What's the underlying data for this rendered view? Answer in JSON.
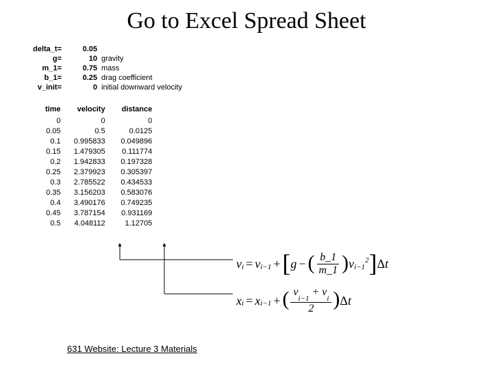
{
  "title": "Go to Excel Spread Sheet",
  "params": [
    {
      "label": "delta_t=",
      "value": "0.05",
      "desc": ""
    },
    {
      "label": "g=",
      "value": "10",
      "desc": "gravity"
    },
    {
      "label": "m_1=",
      "value": "0.75",
      "desc": "mass"
    },
    {
      "label": "b_1=",
      "value": "0.25",
      "desc": "drag coefficient"
    },
    {
      "label": "v_init=",
      "value": "0",
      "desc": "initial downward velocity"
    }
  ],
  "columns": {
    "time": "time",
    "velocity": "velocity",
    "distance": "distance"
  },
  "rows": [
    {
      "time": "0",
      "velocity": "0",
      "distance": "0"
    },
    {
      "time": "0.05",
      "velocity": "0.5",
      "distance": "0.0125"
    },
    {
      "time": "0.1",
      "velocity": "0.995833",
      "distance": "0.049896"
    },
    {
      "time": "0.15",
      "velocity": "1.479305",
      "distance": "0.111774"
    },
    {
      "time": "0.2",
      "velocity": "1.942833",
      "distance": "0.197328"
    },
    {
      "time": "0.25",
      "velocity": "2.379923",
      "distance": "0.305397"
    },
    {
      "time": "0.3",
      "velocity": "2.785522",
      "distance": "0.434533"
    },
    {
      "time": "0.35",
      "velocity": "3.156203",
      "distance": "0.583076"
    },
    {
      "time": "0.4",
      "velocity": "3.490176",
      "distance": "0.749235"
    },
    {
      "time": "0.45",
      "velocity": "3.787154",
      "distance": "0.931169"
    },
    {
      "time": "0.5",
      "velocity": "4.048112",
      "distance": "1.12705"
    }
  ],
  "footer": "631 Website: Lecture 3 Materials",
  "colors": {
    "text": "#000000",
    "background": "#ffffff",
    "arrow": "#000000"
  }
}
